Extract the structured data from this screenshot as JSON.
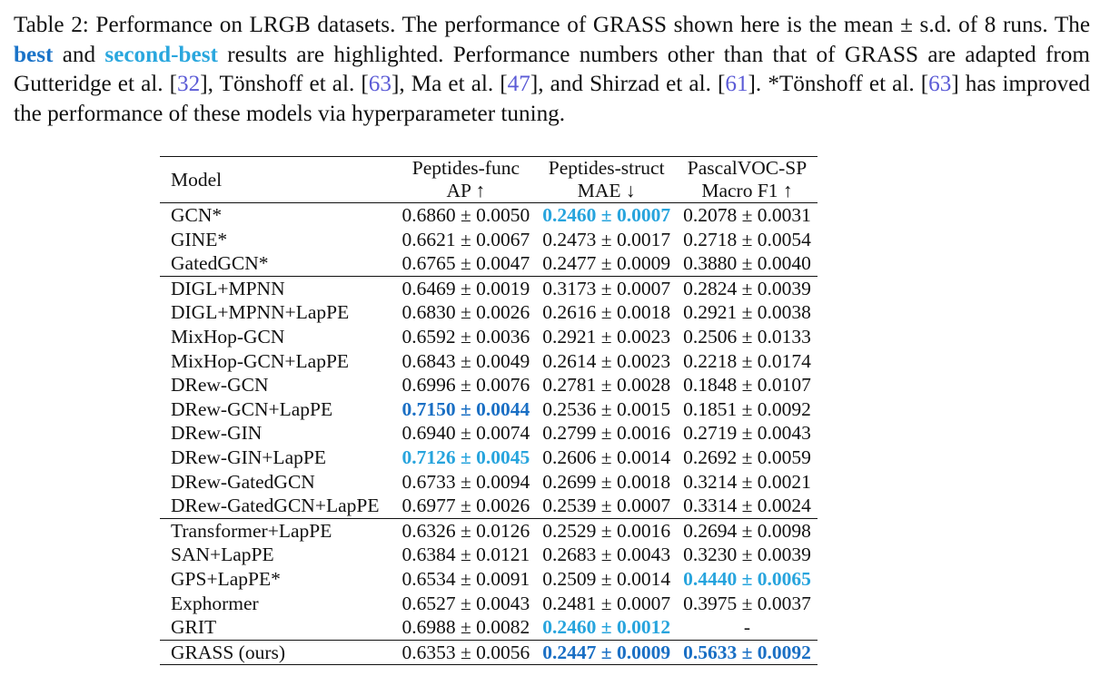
{
  "caption": {
    "p1": "Table 2: Performance on LRGB datasets. The performance of GRASS shown here is the mean ± s.d. of 8 runs. The ",
    "best": "best",
    "p2": " and ",
    "second": "second-best",
    "p3": " results are highlighted. Performance numbers other than that of GRASS are adapted from Gutteridge et al. [",
    "r32": "32",
    "p4": "], Tönshoff et al. [",
    "r63a": "63",
    "p5": "], Ma et al. [",
    "r47": "47",
    "p6": "], and Shirzad et al. [",
    "r61": "61",
    "p7": "]. *Tönshoff et al. [",
    "r63b": "63",
    "p8": "] has improved the performance of these models via hyperparameter tuning."
  },
  "colors": {
    "best": "#1a6fc4",
    "second_best": "#27a4dd"
  },
  "table": {
    "model_header": "Model",
    "columns": [
      {
        "dataset": "Peptides-func",
        "metric": "AP ↑"
      },
      {
        "dataset": "Peptides-struct",
        "metric": "MAE ↓"
      },
      {
        "dataset": "PascalVOC-SP",
        "metric": "Macro F1 ↑"
      }
    ],
    "rows": [
      {
        "model": "GCN*",
        "cells": [
          {
            "text": "0.6860 ± 0.0050",
            "hl": ""
          },
          {
            "text": "0.2460 ± 0.0007",
            "hl": "second"
          },
          {
            "text": "0.2078 ± 0.0031",
            "hl": ""
          }
        ]
      },
      {
        "model": "GINE*",
        "cells": [
          {
            "text": "0.6621 ± 0.0067",
            "hl": ""
          },
          {
            "text": "0.2473 ± 0.0017",
            "hl": ""
          },
          {
            "text": "0.2718 ± 0.0054",
            "hl": ""
          }
        ]
      },
      {
        "model": "GatedGCN*",
        "cells": [
          {
            "text": "0.6765 ± 0.0047",
            "hl": ""
          },
          {
            "text": "0.2477 ± 0.0009",
            "hl": ""
          },
          {
            "text": "0.3880 ± 0.0040",
            "hl": ""
          }
        ]
      },
      {
        "model": "DIGL+MPNN",
        "cells": [
          {
            "text": "0.6469 ± 0.0019",
            "hl": ""
          },
          {
            "text": "0.3173 ± 0.0007",
            "hl": ""
          },
          {
            "text": "0.2824 ± 0.0039",
            "hl": ""
          }
        ]
      },
      {
        "model": "DIGL+MPNN+LapPE",
        "cells": [
          {
            "text": "0.6830 ± 0.0026",
            "hl": ""
          },
          {
            "text": "0.2616 ± 0.0018",
            "hl": ""
          },
          {
            "text": "0.2921 ± 0.0038",
            "hl": ""
          }
        ]
      },
      {
        "model": "MixHop-GCN",
        "cells": [
          {
            "text": "0.6592 ± 0.0036",
            "hl": ""
          },
          {
            "text": "0.2921 ± 0.0023",
            "hl": ""
          },
          {
            "text": "0.2506 ± 0.0133",
            "hl": ""
          }
        ]
      },
      {
        "model": "MixHop-GCN+LapPE",
        "cells": [
          {
            "text": "0.6843 ± 0.0049",
            "hl": ""
          },
          {
            "text": "0.2614 ± 0.0023",
            "hl": ""
          },
          {
            "text": "0.2218 ± 0.0174",
            "hl": ""
          }
        ]
      },
      {
        "model": "DRew-GCN",
        "cells": [
          {
            "text": "0.6996 ± 0.0076",
            "hl": ""
          },
          {
            "text": "0.2781 ± 0.0028",
            "hl": ""
          },
          {
            "text": "0.1848 ± 0.0107",
            "hl": ""
          }
        ]
      },
      {
        "model": "DRew-GCN+LapPE",
        "cells": [
          {
            "text": "0.7150 ± 0.0044",
            "hl": "best"
          },
          {
            "text": "0.2536 ± 0.0015",
            "hl": ""
          },
          {
            "text": "0.1851 ± 0.0092",
            "hl": ""
          }
        ]
      },
      {
        "model": "DRew-GIN",
        "cells": [
          {
            "text": "0.6940 ± 0.0074",
            "hl": ""
          },
          {
            "text": "0.2799 ± 0.0016",
            "hl": ""
          },
          {
            "text": "0.2719 ± 0.0043",
            "hl": ""
          }
        ]
      },
      {
        "model": "DRew-GIN+LapPE",
        "cells": [
          {
            "text": "0.7126 ± 0.0045",
            "hl": "second"
          },
          {
            "text": "0.2606 ± 0.0014",
            "hl": ""
          },
          {
            "text": "0.2692 ± 0.0059",
            "hl": ""
          }
        ]
      },
      {
        "model": "DRew-GatedGCN",
        "cells": [
          {
            "text": "0.6733 ± 0.0094",
            "hl": ""
          },
          {
            "text": "0.2699 ± 0.0018",
            "hl": ""
          },
          {
            "text": "0.3214 ± 0.0021",
            "hl": ""
          }
        ]
      },
      {
        "model": "DRew-GatedGCN+LapPE",
        "cells": [
          {
            "text": "0.6977 ± 0.0026",
            "hl": ""
          },
          {
            "text": "0.2539 ± 0.0007",
            "hl": ""
          },
          {
            "text": "0.3314 ± 0.0024",
            "hl": ""
          }
        ]
      },
      {
        "model": "Transformer+LapPE",
        "cells": [
          {
            "text": "0.6326 ± 0.0126",
            "hl": ""
          },
          {
            "text": "0.2529 ± 0.0016",
            "hl": ""
          },
          {
            "text": "0.2694 ± 0.0098",
            "hl": ""
          }
        ]
      },
      {
        "model": "SAN+LapPE",
        "cells": [
          {
            "text": "0.6384 ± 0.0121",
            "hl": ""
          },
          {
            "text": "0.2683 ± 0.0043",
            "hl": ""
          },
          {
            "text": "0.3230 ± 0.0039",
            "hl": ""
          }
        ]
      },
      {
        "model": "GPS+LapPE*",
        "cells": [
          {
            "text": "0.6534 ± 0.0091",
            "hl": ""
          },
          {
            "text": "0.2509 ± 0.0014",
            "hl": ""
          },
          {
            "text": "0.4440 ± 0.0065",
            "hl": "second"
          }
        ]
      },
      {
        "model": "Exphormer",
        "cells": [
          {
            "text": "0.6527 ± 0.0043",
            "hl": ""
          },
          {
            "text": "0.2481 ± 0.0007",
            "hl": ""
          },
          {
            "text": "0.3975 ± 0.0037",
            "hl": ""
          }
        ]
      },
      {
        "model": "GRIT",
        "cells": [
          {
            "text": "0.6988 ± 0.0082",
            "hl": ""
          },
          {
            "text": "0.2460 ± 0.0012",
            "hl": "second"
          },
          {
            "text": "-",
            "hl": ""
          }
        ]
      },
      {
        "model": "GRASS (ours)",
        "cells": [
          {
            "text": "0.6353 ± 0.0056",
            "hl": ""
          },
          {
            "text": "0.2447 ± 0.0009",
            "hl": "best"
          },
          {
            "text": "0.5633 ± 0.0092",
            "hl": "best"
          }
        ]
      }
    ]
  }
}
